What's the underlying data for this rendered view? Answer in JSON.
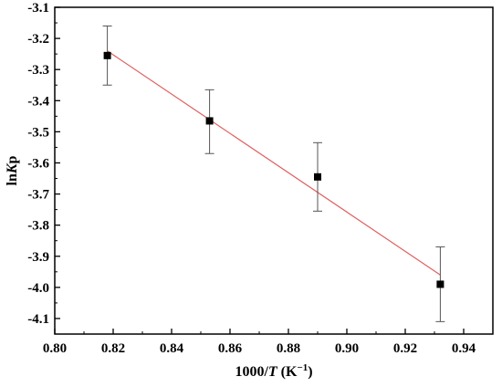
{
  "chart_data": {
    "type": "scatter",
    "title": "",
    "xlabel": {
      "prefix": "1000/",
      "italic": "T",
      "suffix": " (K",
      "sup": "−1",
      "close": ")"
    },
    "ylabel": {
      "prefix": "ln",
      "italic": "K",
      "suffix": "p"
    },
    "xlim": [
      0.8,
      0.95
    ],
    "ylim": [
      -4.15,
      -3.1
    ],
    "x_ticks": [
      0.8,
      0.82,
      0.84,
      0.86,
      0.88,
      0.9,
      0.92,
      0.94
    ],
    "x_tick_labels": [
      "0.80",
      "0.82",
      "0.84",
      "0.86",
      "0.88",
      "0.90",
      "0.92",
      "0.94"
    ],
    "y_ticks": [
      -3.1,
      -3.2,
      -3.3,
      -3.4,
      -3.5,
      -3.6,
      -3.7,
      -3.8,
      -3.9,
      -4.0,
      -4.1
    ],
    "y_tick_labels": [
      "-3.1",
      "-3.2",
      "-3.3",
      "-3.4",
      "-3.5",
      "-3.6",
      "-3.7",
      "-3.8",
      "-3.9",
      "-4.0",
      "-4.1"
    ],
    "grid": false,
    "legend": "none",
    "series": [
      {
        "marker": "square",
        "color": "#000000",
        "points": [
          {
            "x": 0.818,
            "y": -3.255,
            "err_low": -3.35,
            "err_high": -3.16
          },
          {
            "x": 0.853,
            "y": -3.465,
            "err_low": -3.57,
            "err_high": -3.365
          },
          {
            "x": 0.89,
            "y": -3.645,
            "err_low": -3.755,
            "err_high": -3.535
          },
          {
            "x": 0.932,
            "y": -3.99,
            "err_low": -4.11,
            "err_high": -3.87
          }
        ]
      }
    ],
    "fit_line": {
      "color": "#e06060",
      "x": [
        0.818,
        0.932
      ],
      "y": [
        -3.24,
        -3.96
      ]
    }
  }
}
